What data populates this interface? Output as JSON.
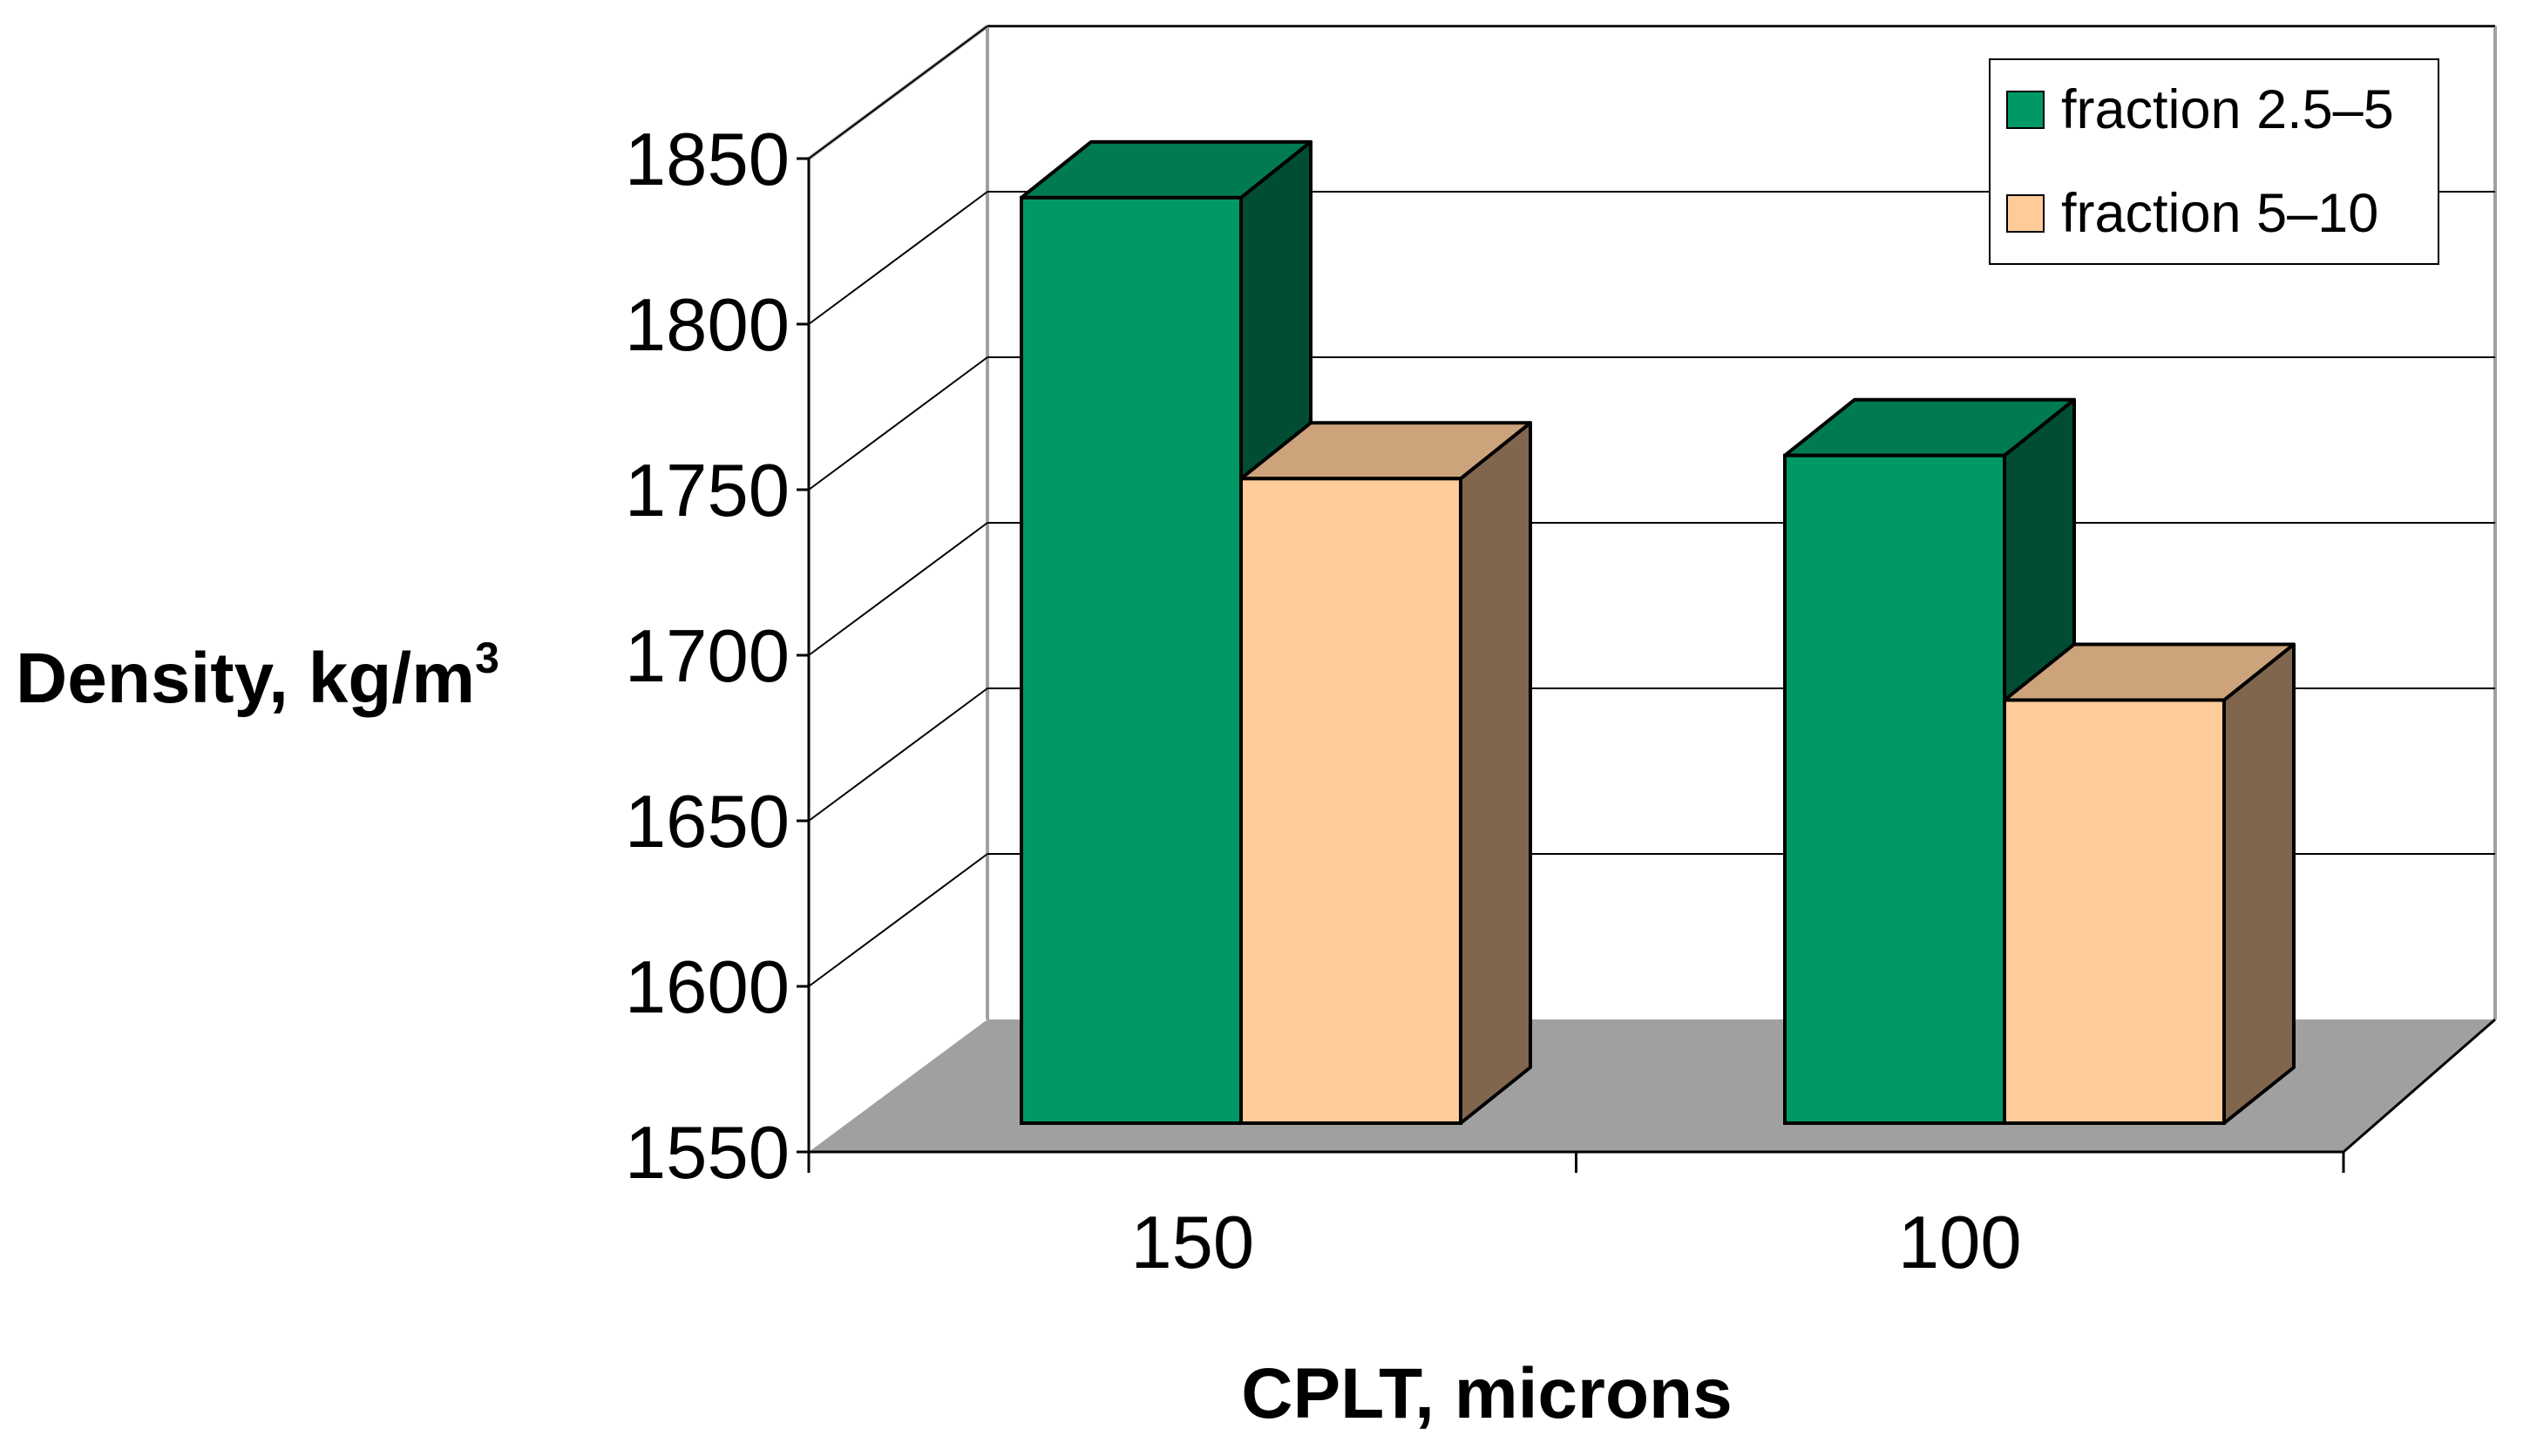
{
  "chart_data": {
    "type": "bar",
    "style": "3d-clustered",
    "title": "",
    "categories": [
      "150",
      "100"
    ],
    "series": [
      {
        "name": "fraction 2.5–5",
        "values": [
          1830,
          1752
        ],
        "color": "#009966"
      },
      {
        "name": "fraction 5–10",
        "values": [
          1745,
          1678
        ],
        "color": "#FFCC99"
      }
    ],
    "ylim": [
      1550,
      1850
    ],
    "yticks": [
      "1550",
      "1600",
      "1650",
      "1700",
      "1750",
      "1800",
      "1850"
    ],
    "ylabel": "Density, kg/m",
    "ylabel_sup": "3",
    "xlabel": "CPLT, microns",
    "grid": true,
    "legend_position": "top-right",
    "floor_color": "#A0A0A0"
  }
}
